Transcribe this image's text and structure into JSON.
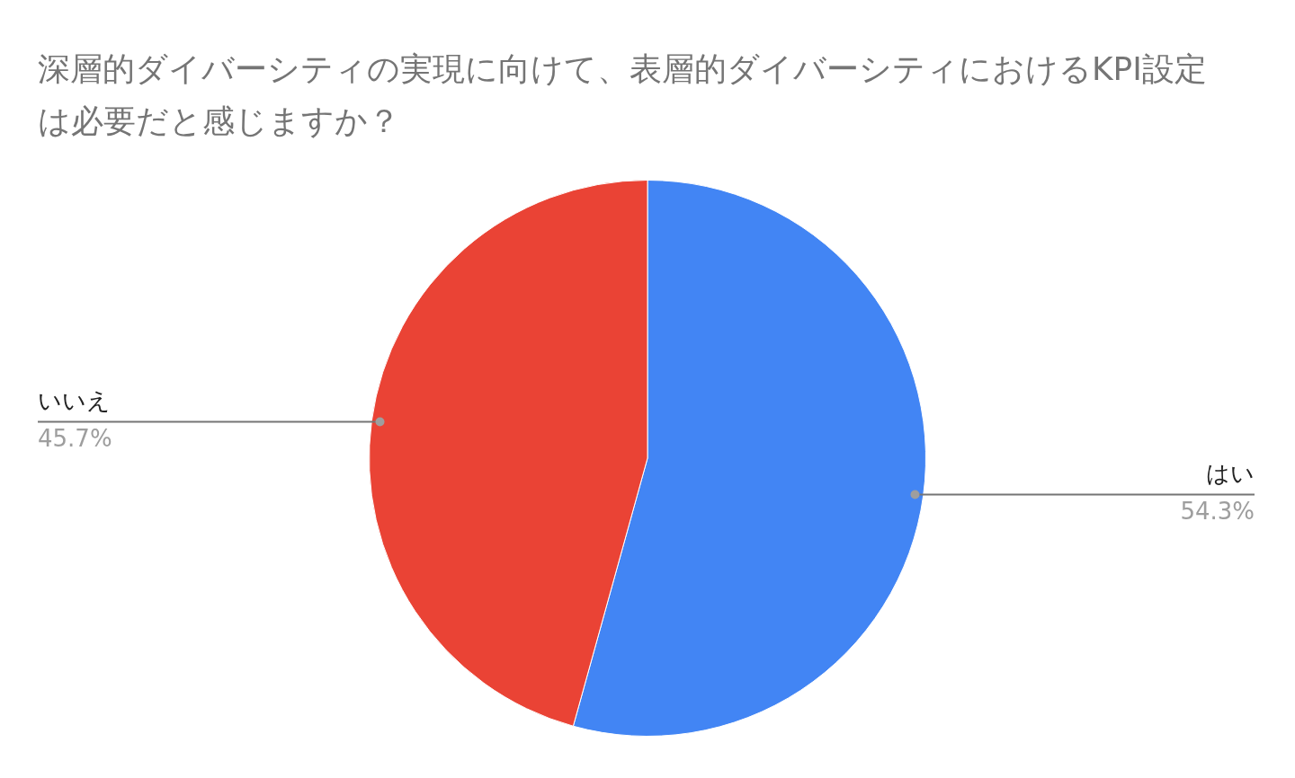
{
  "chart_data": {
    "type": "pie",
    "title": "深層的ダイバーシティの実現に向けて、表層的ダイバーシティにおけるKPI設定は必要だと感じますか？",
    "categories": [
      "はい",
      "いいえ"
    ],
    "values": [
      54.3,
      45.7
    ],
    "colors": [
      "#4285f4",
      "#ea4335"
    ],
    "value_labels": [
      "54.3%",
      "45.7%"
    ],
    "legend": false
  }
}
